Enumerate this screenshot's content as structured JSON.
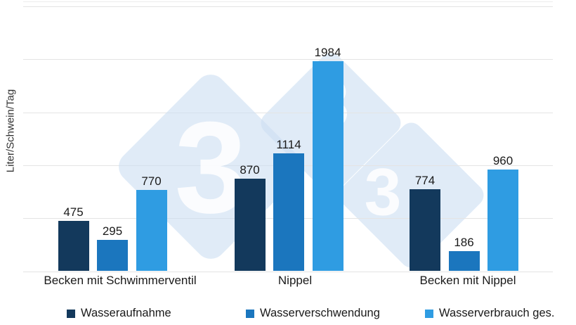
{
  "chart_data": {
    "type": "bar",
    "title": "",
    "ylabel": "Liter/Schwein/Tag",
    "xlabel": "",
    "categories": [
      "Becken mit Schwimmerventil",
      "Nippel",
      "Becken mit Nippel"
    ],
    "series": [
      {
        "name": "Wasseraufnahme",
        "color": "#13395C",
        "values": [
          475,
          870,
          774
        ]
      },
      {
        "name": "Wasserverschwendung",
        "color": "#1B76BE",
        "values": [
          295,
          1114,
          186
        ]
      },
      {
        "name": "Wasserverbrauch ges.",
        "color": "#2F9CE2",
        "values": [
          770,
          1984,
          960
        ]
      }
    ],
    "ylim": [
      0,
      2500
    ],
    "grid_step": 500,
    "grid": "horizontal-light-gray",
    "y_tick_labels_visible": false,
    "value_labels": true,
    "legend_position": "bottom",
    "watermark": {
      "digit": "3",
      "description": "three light-blue rounded diamonds each containing a white digit 3 (pig333 logo)"
    }
  }
}
